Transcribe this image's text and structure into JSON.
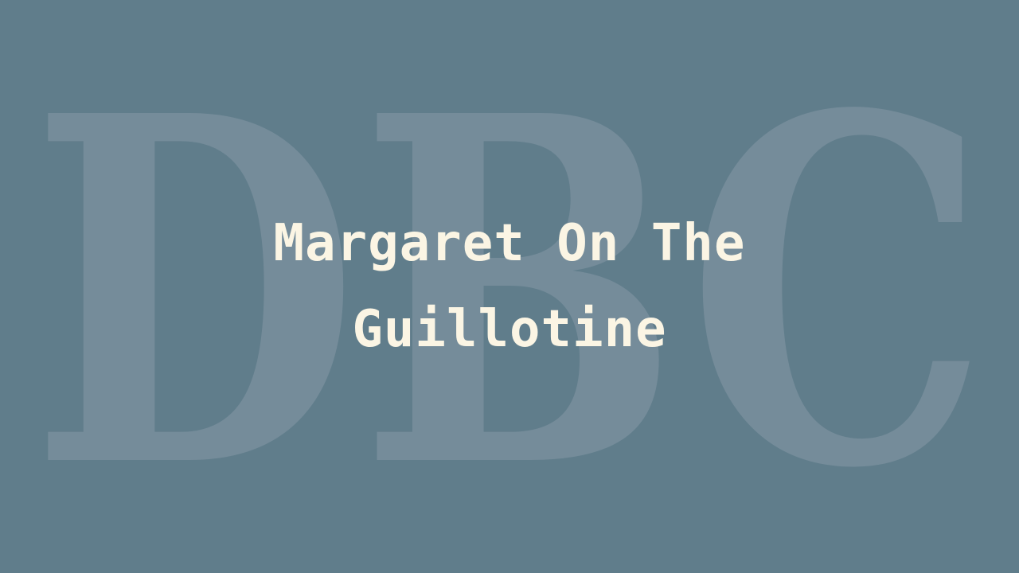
{
  "background_color": "#607d8b",
  "title_color": "#fbf5e4",
  "watermark_color": "#758c9a",
  "watermark": {
    "text": "DBC"
  },
  "title": "Margaret On The Guillotine"
}
